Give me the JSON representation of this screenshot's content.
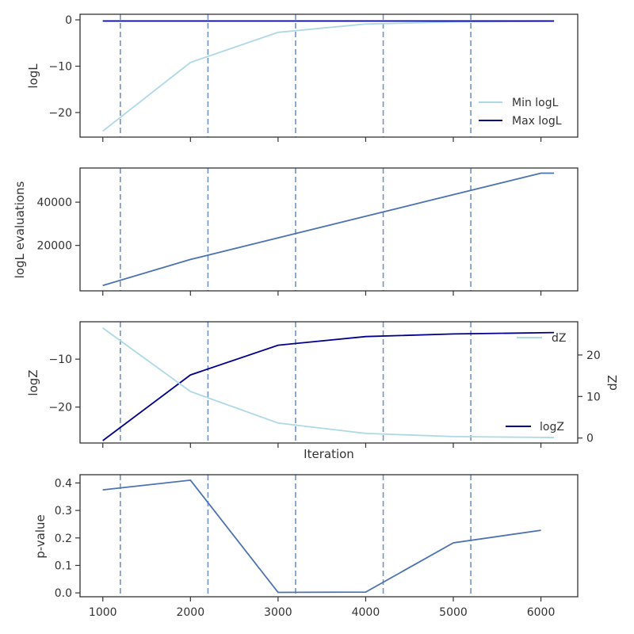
{
  "colors": {
    "light_blue": "#add8e6",
    "dark_blue": "#00008b",
    "steel_blue": "#4c72b0",
    "vline": "#7393c4"
  },
  "chart_data": [
    {
      "type": "line",
      "panel": 1,
      "xlabel": "",
      "ylabel": "logL",
      "xlim": [
        740,
        6420
      ],
      "ylim": [
        -25.3,
        1.2
      ],
      "xticks": [
        1000,
        2000,
        3000,
        4000,
        5000,
        6000
      ],
      "show_xticklabels": false,
      "yticks": [
        -20,
        -10,
        0
      ],
      "yticklabels": [
        "−20",
        "−10",
        "0"
      ],
      "vlines": [
        1200,
        2200,
        3200,
        4200,
        5200
      ],
      "legend": "lower right",
      "series": [
        {
          "name": "Min logL",
          "color": "#add8e6",
          "x": [
            1000,
            2000,
            3000,
            4000,
            5000,
            6000,
            6150
          ],
          "values": [
            -24.0,
            -9.2,
            -2.7,
            -0.9,
            -0.45,
            -0.3,
            -0.28
          ]
        },
        {
          "name": "Max logL",
          "color": "#00008b",
          "x": [
            1000,
            2000,
            3000,
            4000,
            5000,
            6000,
            6150
          ],
          "values": [
            -0.25,
            -0.25,
            -0.25,
            -0.25,
            -0.25,
            -0.25,
            -0.25
          ]
        }
      ]
    },
    {
      "type": "line",
      "panel": 2,
      "xlabel": "",
      "ylabel": "logL evaluations",
      "xlim": [
        740,
        6420
      ],
      "ylim": [
        -1000,
        55800
      ],
      "xticks": [
        1000,
        2000,
        3000,
        4000,
        5000,
        6000
      ],
      "show_xticklabels": false,
      "yticks": [
        20000,
        40000
      ],
      "yticklabels": [
        "20000",
        "40000"
      ],
      "vlines": [
        1200,
        2200,
        3200,
        4200,
        5200
      ],
      "series": [
        {
          "color": "#4c72b0",
          "x": [
            1000,
            2000,
            3000,
            4000,
            5000,
            6000,
            6150
          ],
          "values": [
            1500,
            13500,
            23500,
            33500,
            43500,
            53400,
            53400
          ]
        }
      ]
    },
    {
      "type": "line",
      "panel": 3,
      "xlabel": "Iteration",
      "ylabel": "logZ",
      "ylabel_right": "dZ",
      "xlim": [
        740,
        6420
      ],
      "ylim": [
        -27.5,
        -2.2
      ],
      "ylim_right": [
        -1.2,
        28.0
      ],
      "xticks": [
        1000,
        2000,
        3000,
        4000,
        5000,
        6000
      ],
      "show_xticklabels": false,
      "yticks": [
        -20,
        -10
      ],
      "yticklabels": [
        "−20",
        "−10"
      ],
      "yticks_right": [
        0,
        10,
        20
      ],
      "yticklabels_right": [
        "0",
        "10",
        "20"
      ],
      "vlines": [
        1200,
        2200,
        3200,
        4200,
        5200
      ],
      "legend_right": "upper right",
      "legend_left": "lower right",
      "series": [
        {
          "name": "logZ",
          "axis": "left",
          "color": "#00008b",
          "x": [
            1000,
            2000,
            3000,
            4000,
            5000,
            6000,
            6150
          ],
          "values": [
            -27.0,
            -13.3,
            -7.1,
            -5.3,
            -4.75,
            -4.5,
            -4.45
          ]
        },
        {
          "name": "dZ",
          "axis": "right",
          "color": "#add8e6",
          "x": [
            1000,
            2000,
            3000,
            4000,
            5000,
            6000,
            6150
          ],
          "values": [
            26.5,
            11.2,
            3.6,
            1.1,
            0.35,
            0.15,
            0.1
          ]
        }
      ]
    },
    {
      "type": "line",
      "panel": 4,
      "xlabel": "",
      "ylabel": "p-value",
      "xlim": [
        740,
        6420
      ],
      "ylim": [
        -0.014,
        0.43
      ],
      "xticks": [
        1000,
        2000,
        3000,
        4000,
        5000,
        6000
      ],
      "xticklabels": [
        "1000",
        "2000",
        "3000",
        "4000",
        "5000",
        "6000"
      ],
      "show_xticklabels": true,
      "yticks": [
        0.0,
        0.1,
        0.2,
        0.3,
        0.4
      ],
      "yticklabels": [
        "0.0",
        "0.1",
        "0.2",
        "0.3",
        "0.4"
      ],
      "vlines": [
        1200,
        2200,
        3200,
        4200,
        5200
      ],
      "series": [
        {
          "color": "#4c72b0",
          "x": [
            1000,
            2000,
            3000,
            4000,
            5000,
            6000
          ],
          "values": [
            0.375,
            0.41,
            0.002,
            0.003,
            0.182,
            0.228
          ]
        }
      ]
    }
  ]
}
